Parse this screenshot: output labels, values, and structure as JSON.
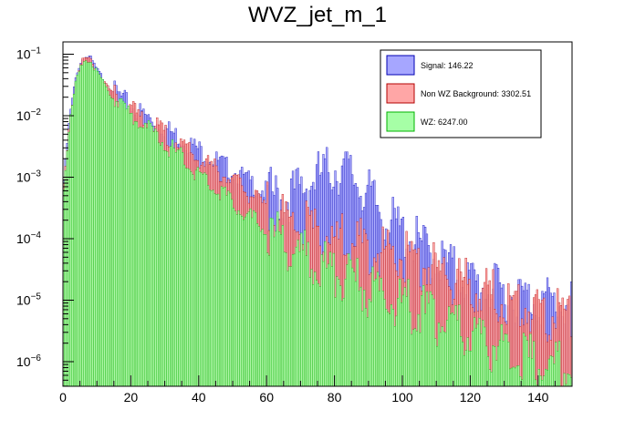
{
  "chart_data": {
    "type": "bar",
    "title": "WVZ_jet_m_1",
    "xlabel": "",
    "ylabel": "",
    "xlim": [
      0,
      150
    ],
    "ylim_log10": [
      -6.4,
      -0.8
    ],
    "yscale": "log",
    "grid": false,
    "legend_placement": "top-right",
    "x_ticks": [
      0,
      20,
      40,
      60,
      80,
      100,
      120,
      140
    ],
    "y_ticks": [
      {
        "exp": -6,
        "label": "10",
        "sup": "−6"
      },
      {
        "exp": -5,
        "label": "10",
        "sup": "−5"
      },
      {
        "exp": -4,
        "label": "10",
        "sup": "−4"
      },
      {
        "exp": -3,
        "label": "10",
        "sup": "−3"
      },
      {
        "exp": -2,
        "label": "10",
        "sup": "−2"
      },
      {
        "exp": -1,
        "label": "10",
        "sup": "−1"
      }
    ],
    "series": [
      {
        "name": "Signal: 146.22",
        "color": "#a6a6ff",
        "edge": "#0000b3",
        "points": [
          [
            0,
            -3.2
          ],
          [
            2,
            -2.0
          ],
          [
            4,
            -1.3
          ],
          [
            6,
            -1.05
          ],
          [
            8,
            -1.05
          ],
          [
            10,
            -1.25
          ],
          [
            14,
            -1.55
          ],
          [
            20,
            -1.85
          ],
          [
            30,
            -2.2
          ],
          [
            40,
            -2.55
          ],
          [
            50,
            -2.9
          ],
          [
            60,
            -3.25
          ],
          [
            65,
            -3.35
          ],
          [
            70,
            -3.2
          ],
          [
            75,
            -3.0
          ],
          [
            80,
            -2.85
          ],
          [
            85,
            -2.95
          ],
          [
            90,
            -3.3
          ],
          [
            95,
            -3.65
          ],
          [
            100,
            -3.9
          ],
          [
            110,
            -4.3
          ],
          [
            120,
            -4.7
          ],
          [
            130,
            -4.9
          ],
          [
            140,
            -5.0
          ],
          [
            150,
            -5.1
          ]
        ]
      },
      {
        "name": "Non WZ Background: 3302.51",
        "color": "#ffa6a6",
        "edge": "#b30000",
        "points": [
          [
            0,
            -3.3
          ],
          [
            2,
            -2.05
          ],
          [
            4,
            -1.35
          ],
          [
            6,
            -1.07
          ],
          [
            8,
            -1.07
          ],
          [
            10,
            -1.27
          ],
          [
            14,
            -1.6
          ],
          [
            20,
            -1.9
          ],
          [
            30,
            -2.3
          ],
          [
            40,
            -2.7
          ],
          [
            50,
            -3.05
          ],
          [
            60,
            -3.5
          ],
          [
            70,
            -3.8
          ],
          [
            80,
            -4.0
          ],
          [
            90,
            -4.15
          ],
          [
            100,
            -4.3
          ],
          [
            110,
            -4.5
          ],
          [
            120,
            -4.8
          ],
          [
            130,
            -5.0
          ],
          [
            140,
            -5.2
          ],
          [
            150,
            -5.3
          ]
        ]
      },
      {
        "name": "WZ: 6247.00",
        "color": "#a6ffa6",
        "edge": "#00b300",
        "points": [
          [
            0,
            -3.35
          ],
          [
            2,
            -2.1
          ],
          [
            4,
            -1.4
          ],
          [
            6,
            -1.1
          ],
          [
            8,
            -1.1
          ],
          [
            10,
            -1.3
          ],
          [
            14,
            -1.65
          ],
          [
            20,
            -2.0
          ],
          [
            30,
            -2.45
          ],
          [
            40,
            -2.95
          ],
          [
            50,
            -3.4
          ],
          [
            60,
            -3.9
          ],
          [
            70,
            -4.25
          ],
          [
            80,
            -4.55
          ],
          [
            90,
            -4.85
          ],
          [
            100,
            -5.05
          ],
          [
            110,
            -5.3
          ],
          [
            120,
            -5.6
          ],
          [
            130,
            -5.8
          ],
          [
            140,
            -6.0
          ],
          [
            150,
            -6.1
          ]
        ]
      }
    ]
  }
}
